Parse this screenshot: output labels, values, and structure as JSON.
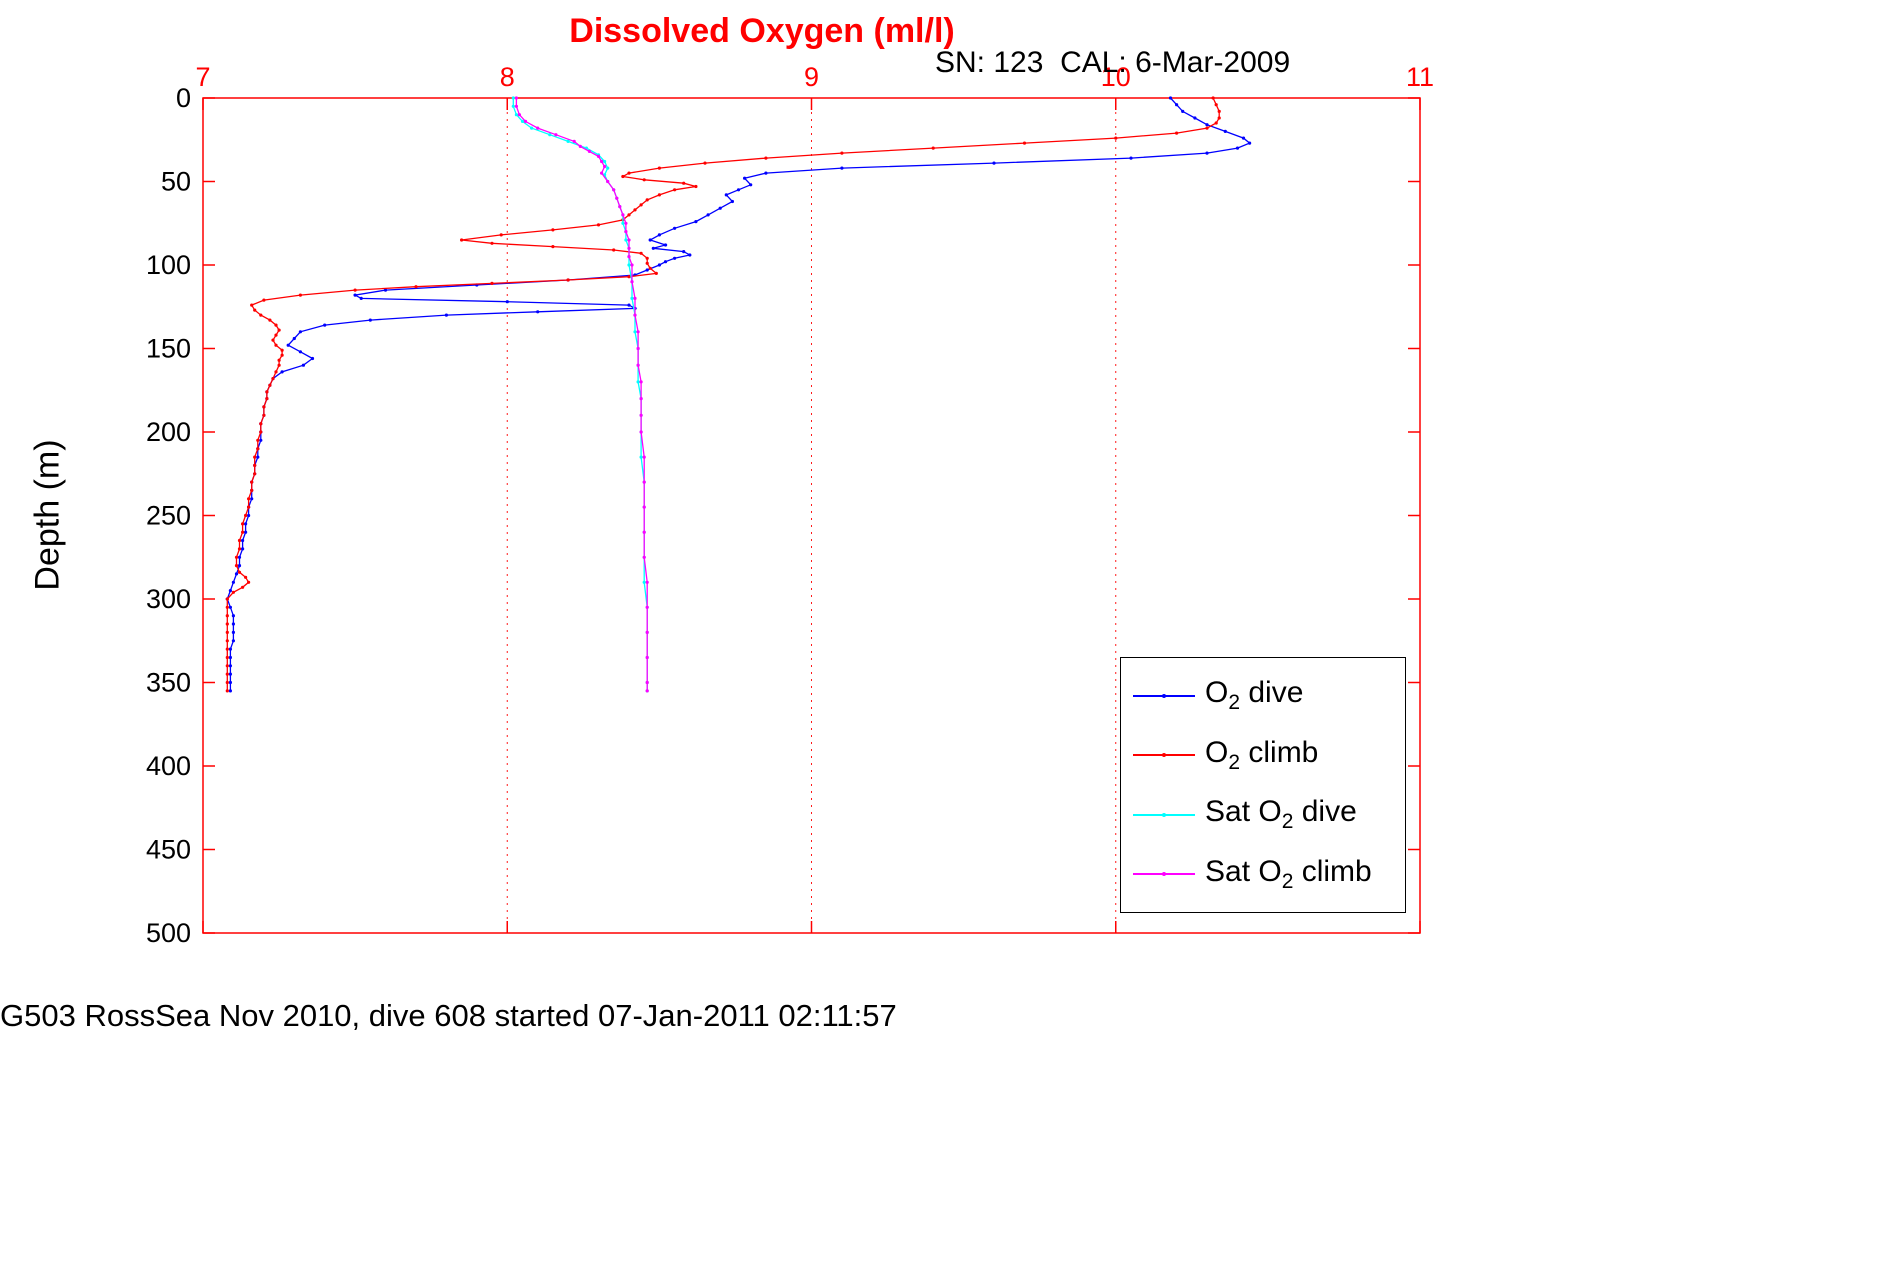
{
  "chart_data": {
    "type": "line",
    "title": "Dissolved Oxygen (ml/l)",
    "subtitle": "SN: 123  CAL: 6-Mar-2009",
    "xlabel": "",
    "ylabel": "Depth (m)",
    "caption": "G503 RossSea Nov 2010, dive 608 started 07-Jan-2011 02:11:57",
    "xlim": [
      7,
      11
    ],
    "ylim": [
      0,
      500
    ],
    "xticks": [
      7,
      8,
      9,
      10,
      11
    ],
    "yticks": [
      0,
      50,
      100,
      150,
      200,
      250,
      300,
      350,
      400,
      450,
      500
    ],
    "grid": "vertical-dotted-red",
    "axis_color": "#ff0000",
    "x_tick_label_color": "#ff0000",
    "y_tick_label_color": "#000000",
    "legend_position": "lower-right-inside",
    "series": [
      {
        "name": "O2 dive",
        "color": "#0000ff",
        "points": [
          [
            0,
            10.18
          ],
          [
            4,
            10.2
          ],
          [
            8,
            10.22
          ],
          [
            12,
            10.26
          ],
          [
            16,
            10.3
          ],
          [
            20,
            10.36
          ],
          [
            24,
            10.42
          ],
          [
            27,
            10.44
          ],
          [
            30,
            10.4
          ],
          [
            33,
            10.3
          ],
          [
            36,
            10.05
          ],
          [
            39,
            9.6
          ],
          [
            42,
            9.1
          ],
          [
            45,
            8.85
          ],
          [
            48,
            8.78
          ],
          [
            52,
            8.8
          ],
          [
            55,
            8.76
          ],
          [
            58,
            8.72
          ],
          [
            62,
            8.74
          ],
          [
            66,
            8.7
          ],
          [
            70,
            8.66
          ],
          [
            74,
            8.62
          ],
          [
            78,
            8.55
          ],
          [
            82,
            8.5
          ],
          [
            85,
            8.47
          ],
          [
            88,
            8.52
          ],
          [
            90,
            8.48
          ],
          [
            92,
            8.58
          ],
          [
            94,
            8.6
          ],
          [
            96,
            8.55
          ],
          [
            98,
            8.52
          ],
          [
            100,
            8.5
          ],
          [
            103,
            8.46
          ],
          [
            106,
            8.42
          ],
          [
            109,
            8.2
          ],
          [
            112,
            7.9
          ],
          [
            115,
            7.6
          ],
          [
            118,
            7.5
          ],
          [
            120,
            7.52
          ],
          [
            122,
            8.0
          ],
          [
            124,
            8.4
          ],
          [
            126,
            8.42
          ],
          [
            128,
            8.1
          ],
          [
            130,
            7.8
          ],
          [
            133,
            7.55
          ],
          [
            136,
            7.4
          ],
          [
            140,
            7.32
          ],
          [
            144,
            7.3
          ],
          [
            148,
            7.28
          ],
          [
            152,
            7.32
          ],
          [
            156,
            7.36
          ],
          [
            160,
            7.33
          ],
          [
            164,
            7.26
          ],
          [
            168,
            7.23
          ],
          [
            172,
            7.22
          ],
          [
            176,
            7.21
          ],
          [
            180,
            7.21
          ],
          [
            185,
            7.2
          ],
          [
            190,
            7.2
          ],
          [
            195,
            7.19
          ],
          [
            200,
            7.19
          ],
          [
            205,
            7.19
          ],
          [
            210,
            7.18
          ],
          [
            215,
            7.18
          ],
          [
            220,
            7.17
          ],
          [
            225,
            7.17
          ],
          [
            230,
            7.16
          ],
          [
            235,
            7.16
          ],
          [
            240,
            7.16
          ],
          [
            245,
            7.15
          ],
          [
            250,
            7.15
          ],
          [
            255,
            7.14
          ],
          [
            260,
            7.14
          ],
          [
            265,
            7.13
          ],
          [
            270,
            7.13
          ],
          [
            275,
            7.12
          ],
          [
            280,
            7.12
          ],
          [
            285,
            7.11
          ],
          [
            290,
            7.1
          ],
          [
            295,
            7.09
          ],
          [
            300,
            7.08
          ],
          [
            305,
            7.09
          ],
          [
            310,
            7.1
          ],
          [
            315,
            7.1
          ],
          [
            320,
            7.1
          ],
          [
            325,
            7.1
          ],
          [
            330,
            7.09
          ],
          [
            335,
            7.09
          ],
          [
            340,
            7.09
          ],
          [
            345,
            7.09
          ],
          [
            350,
            7.09
          ],
          [
            355,
            7.09
          ]
        ]
      },
      {
        "name": "O2 climb",
        "color": "#ff0000",
        "points": [
          [
            0,
            10.32
          ],
          [
            4,
            10.33
          ],
          [
            8,
            10.34
          ],
          [
            12,
            10.34
          ],
          [
            15,
            10.33
          ],
          [
            18,
            10.3
          ],
          [
            21,
            10.2
          ],
          [
            24,
            10.0
          ],
          [
            27,
            9.7
          ],
          [
            30,
            9.4
          ],
          [
            33,
            9.1
          ],
          [
            36,
            8.85
          ],
          [
            39,
            8.65
          ],
          [
            42,
            8.5
          ],
          [
            45,
            8.4
          ],
          [
            47,
            8.38
          ],
          [
            49,
            8.45
          ],
          [
            51,
            8.58
          ],
          [
            53,
            8.62
          ],
          [
            55,
            8.55
          ],
          [
            58,
            8.5
          ],
          [
            61,
            8.46
          ],
          [
            64,
            8.44
          ],
          [
            67,
            8.42
          ],
          [
            70,
            8.4
          ],
          [
            73,
            8.38
          ],
          [
            76,
            8.3
          ],
          [
            79,
            8.15
          ],
          [
            82,
            7.98
          ],
          [
            85,
            7.85
          ],
          [
            87,
            7.95
          ],
          [
            89,
            8.15
          ],
          [
            91,
            8.35
          ],
          [
            93,
            8.44
          ],
          [
            96,
            8.46
          ],
          [
            99,
            8.46
          ],
          [
            102,
            8.47
          ],
          [
            105,
            8.49
          ],
          [
            107,
            8.4
          ],
          [
            109,
            8.2
          ],
          [
            111,
            7.95
          ],
          [
            113,
            7.7
          ],
          [
            115,
            7.5
          ],
          [
            118,
            7.32
          ],
          [
            121,
            7.2
          ],
          [
            124,
            7.16
          ],
          [
            127,
            7.17
          ],
          [
            130,
            7.19
          ],
          [
            133,
            7.22
          ],
          [
            136,
            7.24
          ],
          [
            139,
            7.25
          ],
          [
            142,
            7.24
          ],
          [
            145,
            7.23
          ],
          [
            148,
            7.24
          ],
          [
            151,
            7.26
          ],
          [
            154,
            7.26
          ],
          [
            157,
            7.25
          ],
          [
            160,
            7.25
          ],
          [
            164,
            7.24
          ],
          [
            168,
            7.23
          ],
          [
            172,
            7.22
          ],
          [
            176,
            7.21
          ],
          [
            180,
            7.21
          ],
          [
            185,
            7.2
          ],
          [
            190,
            7.2
          ],
          [
            195,
            7.19
          ],
          [
            200,
            7.19
          ],
          [
            205,
            7.18
          ],
          [
            210,
            7.18
          ],
          [
            215,
            7.17
          ],
          [
            220,
            7.17
          ],
          [
            225,
            7.17
          ],
          [
            230,
            7.16
          ],
          [
            235,
            7.16
          ],
          [
            240,
            7.15
          ],
          [
            245,
            7.15
          ],
          [
            250,
            7.14
          ],
          [
            255,
            7.13
          ],
          [
            260,
            7.13
          ],
          [
            265,
            7.12
          ],
          [
            270,
            7.12
          ],
          [
            275,
            7.11
          ],
          [
            280,
            7.11
          ],
          [
            284,
            7.12
          ],
          [
            287,
            7.14
          ],
          [
            290,
            7.15
          ],
          [
            293,
            7.13
          ],
          [
            296,
            7.1
          ],
          [
            300,
            7.08
          ],
          [
            305,
            7.08
          ],
          [
            310,
            7.08
          ],
          [
            315,
            7.08
          ],
          [
            320,
            7.08
          ],
          [
            325,
            7.08
          ],
          [
            330,
            7.08
          ],
          [
            335,
            7.08
          ],
          [
            340,
            7.08
          ],
          [
            345,
            7.08
          ],
          [
            350,
            7.08
          ],
          [
            355,
            7.08
          ]
        ]
      },
      {
        "name": "Sat O2 dive",
        "color": "#00ffff",
        "points": [
          [
            0,
            8.02
          ],
          [
            5,
            8.02
          ],
          [
            10,
            8.03
          ],
          [
            14,
            8.05
          ],
          [
            18,
            8.08
          ],
          [
            22,
            8.14
          ],
          [
            26,
            8.2
          ],
          [
            30,
            8.26
          ],
          [
            34,
            8.3
          ],
          [
            38,
            8.32
          ],
          [
            42,
            8.33
          ],
          [
            46,
            8.32
          ],
          [
            50,
            8.33
          ],
          [
            55,
            8.35
          ],
          [
            60,
            8.36
          ],
          [
            65,
            8.37
          ],
          [
            70,
            8.38
          ],
          [
            75,
            8.38
          ],
          [
            80,
            8.39
          ],
          [
            85,
            8.39
          ],
          [
            90,
            8.4
          ],
          [
            95,
            8.4
          ],
          [
            100,
            8.4
          ],
          [
            110,
            8.41
          ],
          [
            120,
            8.41
          ],
          [
            130,
            8.42
          ],
          [
            140,
            8.42
          ],
          [
            150,
            8.43
          ],
          [
            160,
            8.43
          ],
          [
            170,
            8.43
          ],
          [
            180,
            8.44
          ],
          [
            190,
            8.44
          ],
          [
            200,
            8.44
          ],
          [
            215,
            8.44
          ],
          [
            230,
            8.45
          ],
          [
            245,
            8.45
          ],
          [
            260,
            8.45
          ],
          [
            275,
            8.45
          ],
          [
            290,
            8.45
          ],
          [
            305,
            8.46
          ],
          [
            320,
            8.46
          ],
          [
            335,
            8.46
          ],
          [
            350,
            8.46
          ],
          [
            355,
            8.46
          ]
        ]
      },
      {
        "name": "Sat O2 climb",
        "color": "#ff00ff",
        "points": [
          [
            0,
            8.03
          ],
          [
            5,
            8.03
          ],
          [
            10,
            8.04
          ],
          [
            14,
            8.06
          ],
          [
            18,
            8.1
          ],
          [
            22,
            8.16
          ],
          [
            26,
            8.22
          ],
          [
            29,
            8.24
          ],
          [
            32,
            8.27
          ],
          [
            35,
            8.3
          ],
          [
            38,
            8.31
          ],
          [
            41,
            8.32
          ],
          [
            45,
            8.31
          ],
          [
            50,
            8.33
          ],
          [
            55,
            8.35
          ],
          [
            60,
            8.36
          ],
          [
            65,
            8.37
          ],
          [
            70,
            8.38
          ],
          [
            75,
            8.39
          ],
          [
            80,
            8.39
          ],
          [
            85,
            8.4
          ],
          [
            90,
            8.4
          ],
          [
            95,
            8.4
          ],
          [
            100,
            8.41
          ],
          [
            110,
            8.41
          ],
          [
            120,
            8.42
          ],
          [
            130,
            8.42
          ],
          [
            140,
            8.43
          ],
          [
            150,
            8.43
          ],
          [
            160,
            8.43
          ],
          [
            170,
            8.44
          ],
          [
            180,
            8.44
          ],
          [
            190,
            8.44
          ],
          [
            200,
            8.44
          ],
          [
            215,
            8.45
          ],
          [
            230,
            8.45
          ],
          [
            245,
            8.45
          ],
          [
            260,
            8.45
          ],
          [
            275,
            8.45
          ],
          [
            290,
            8.46
          ],
          [
            305,
            8.46
          ],
          [
            320,
            8.46
          ],
          [
            335,
            8.46
          ],
          [
            350,
            8.46
          ],
          [
            355,
            8.46
          ]
        ]
      }
    ]
  },
  "legend": {
    "entries": [
      {
        "pre": "O",
        "sub": "2",
        "post": " dive",
        "color": "#0000ff"
      },
      {
        "pre": "O",
        "sub": "2",
        "post": " climb",
        "color": "#ff0000"
      },
      {
        "pre": "Sat O",
        "sub": "2",
        "post": " dive",
        "color": "#00ffff"
      },
      {
        "pre": "Sat O",
        "sub": "2",
        "post": " climb",
        "color": "#ff00ff"
      }
    ]
  }
}
